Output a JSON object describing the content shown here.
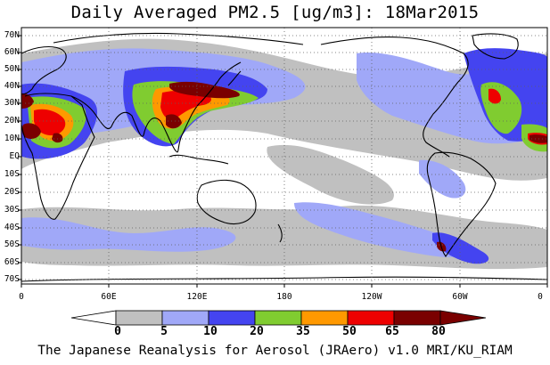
{
  "title": "Daily Averaged PM2.5 [ug/m3]: 18Mar2015",
  "map": {
    "projection": "cylindrical-equidistant",
    "lon_range": [
      0,
      360
    ],
    "lat_range": [
      -75,
      75
    ],
    "grid": "dotted",
    "lat_labels": [
      "70N",
      "60N",
      "50N",
      "40N",
      "30N",
      "20N",
      "10N",
      "EQ",
      "10S",
      "20S",
      "30S",
      "40S",
      "50S",
      "60S",
      "70S"
    ],
    "lon_labels": [
      "0",
      "60E",
      "120E",
      "180",
      "120W",
      "60W",
      "0"
    ]
  },
  "colorbar": {
    "levels": [
      "0",
      "5",
      "10",
      "20",
      "35",
      "50",
      "65",
      "80"
    ],
    "colors": [
      "#ffffff",
      "#c0c0c0",
      "#a0a8f8",
      "#4444f0",
      "#80cc30",
      "#ff9900",
      "#ee0000",
      "#7a0000"
    ]
  },
  "credit": "The Japanese Reanalysis for Aerosol (JRAero) v1.0 MRI/KU_RIAM"
}
